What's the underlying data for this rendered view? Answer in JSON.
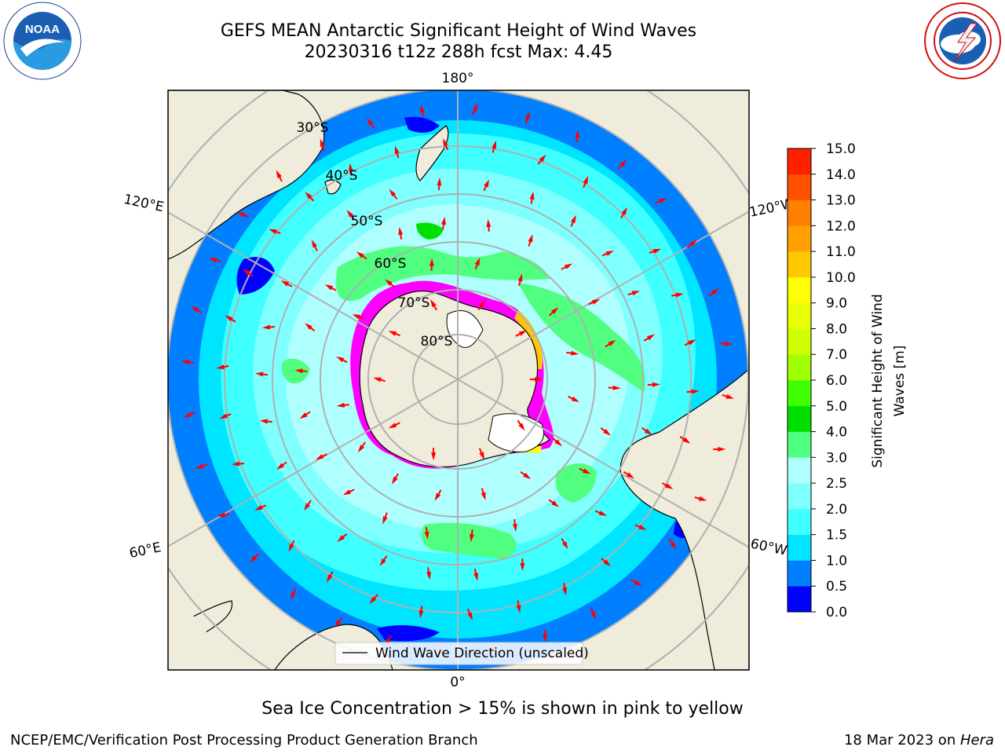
{
  "title": {
    "line1": "GEFS MEAN Antarctic Significant Height of Wind Waves",
    "line2": "20230316 t12z 288h fcst   Max: 4.45"
  },
  "logos": {
    "left": "noaa-logo",
    "left_text": "NOAA",
    "left_ring_text": "NATIONAL OCEANIC AND ATMOSPHERIC ADMINISTRATION · U.S. DEPARTMENT OF COMMERCE",
    "right": "nws-logo",
    "right_ring_text": "NATIONAL WEATHER SERVICE"
  },
  "map": {
    "projection": "south-polar-stereographic",
    "lon_labels": {
      "top": "180°",
      "bottom": "0°",
      "upper_left": "120°E",
      "upper_right": "120°W",
      "lower_left": "60°E",
      "lower_right": "60°W"
    },
    "lat_labels": [
      "30°S",
      "40°S",
      "50°S",
      "60°S",
      "70°S",
      "80°S"
    ],
    "colors": {
      "land": "#efecdc",
      "ice_high": "#ff00ff",
      "arrow": "#ff0000",
      "grid": "#b0b0b0"
    },
    "legend_label": "Wind Wave Direction (unscaled)"
  },
  "colorbar": {
    "label_line1": "Significant Height of Wind",
    "label_line2": "Waves [m]",
    "ticks": [
      "0.0",
      "0.5",
      "1.0",
      "1.5",
      "2.0",
      "2.5",
      "3.0",
      "4.0",
      "5.0",
      "6.0",
      "7.0",
      "8.0",
      "9.0",
      "10.0",
      "11.0",
      "12.0",
      "13.0",
      "14.0",
      "15.0"
    ],
    "colors": [
      "#0000ff",
      "#0080ff",
      "#00e5ff",
      "#40ffff",
      "#80ffff",
      "#b0ffff",
      "#50ff80",
      "#00e000",
      "#40ff00",
      "#a0ff00",
      "#d0ff00",
      "#e8ff00",
      "#ffff00",
      "#ffc800",
      "#ffa000",
      "#ff8000",
      "#ff5000",
      "#ff2000"
    ]
  },
  "caption": "Sea Ice Concentration > 15% is shown in pink to yellow",
  "footer": {
    "left": "NCEP/EMC/Verification Post Processing Product Generation Branch",
    "right_date": "18 Mar 2023 on ",
    "right_host": "Hera"
  }
}
